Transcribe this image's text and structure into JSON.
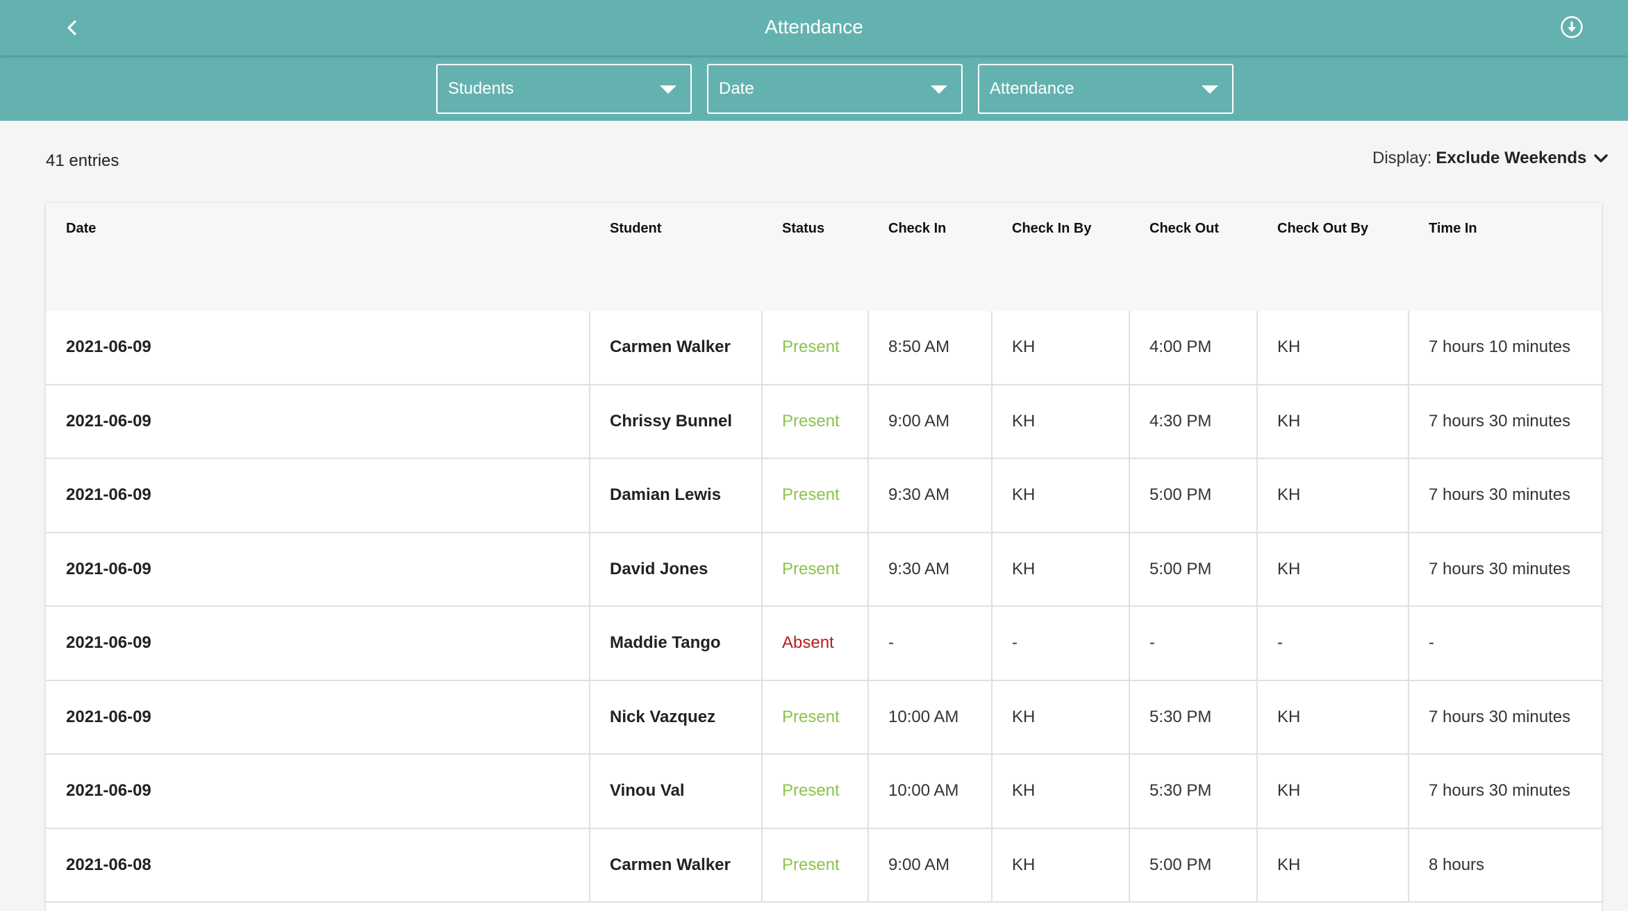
{
  "header": {
    "title": "Attendance",
    "back_icon": "chevron-left-icon",
    "download_icon": "download-circle-icon",
    "color": "#64b2b0"
  },
  "filters": [
    {
      "label": "Students"
    },
    {
      "label": "Date"
    },
    {
      "label": "Attendance"
    }
  ],
  "summary": {
    "entries": "41 entries",
    "display_label": "Display:",
    "display_value": "Exclude Weekends"
  },
  "table": {
    "columns": [
      "Date",
      "Student",
      "Status",
      "Check In",
      "Check In By",
      "Check Out",
      "Check Out By",
      "Time In"
    ],
    "rows": [
      {
        "date": "2021-06-09",
        "student": "Carmen Walker",
        "status": "Present",
        "check_in": "8:50 AM",
        "check_in_by": "KH",
        "check_out": "4:00 PM",
        "check_out_by": "KH",
        "time_in": "7 hours 10 minutes"
      },
      {
        "date": "2021-06-09",
        "student": "Chrissy Bunnel",
        "status": "Present",
        "check_in": "9:00 AM",
        "check_in_by": "KH",
        "check_out": "4:30 PM",
        "check_out_by": "KH",
        "time_in": "7 hours 30 minutes"
      },
      {
        "date": "2021-06-09",
        "student": "Damian Lewis",
        "status": "Present",
        "check_in": "9:30 AM",
        "check_in_by": "KH",
        "check_out": "5:00 PM",
        "check_out_by": "KH",
        "time_in": "7 hours 30 minutes"
      },
      {
        "date": "2021-06-09",
        "student": "David Jones",
        "status": "Present",
        "check_in": "9:30 AM",
        "check_in_by": "KH",
        "check_out": "5:00 PM",
        "check_out_by": "KH",
        "time_in": "7 hours 30 minutes"
      },
      {
        "date": "2021-06-09",
        "student": "Maddie Tango",
        "status": "Absent",
        "check_in": "-",
        "check_in_by": "-",
        "check_out": "-",
        "check_out_by": "-",
        "time_in": "-"
      },
      {
        "date": "2021-06-09",
        "student": "Nick Vazquez",
        "status": "Present",
        "check_in": "10:00 AM",
        "check_in_by": "KH",
        "check_out": "5:30 PM",
        "check_out_by": "KH",
        "time_in": "7 hours 30 minutes"
      },
      {
        "date": "2021-06-09",
        "student": "Vinou Val",
        "status": "Present",
        "check_in": "10:00 AM",
        "check_in_by": "KH",
        "check_out": "5:30 PM",
        "check_out_by": "KH",
        "time_in": "7 hours 30 minutes"
      },
      {
        "date": "2021-06-08",
        "student": "Carmen Walker",
        "status": "Present",
        "check_in": "9:00 AM",
        "check_in_by": "KH",
        "check_out": "5:00 PM",
        "check_out_by": "KH",
        "time_in": "8 hours"
      }
    ]
  },
  "status_colors": {
    "Present": "#8bc34a",
    "Absent": "#b71c1c"
  }
}
